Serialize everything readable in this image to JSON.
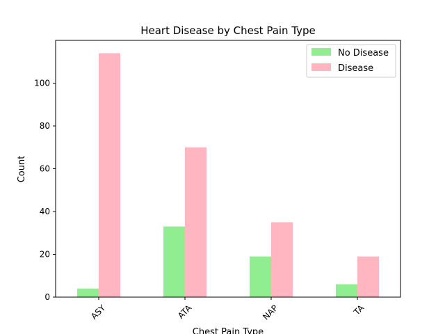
{
  "chart_data": {
    "type": "bar",
    "title": "Heart Disease by Chest Pain Type",
    "xlabel": "Chest Pain Type",
    "ylabel": "Count",
    "categories": [
      "ASY",
      "ATA",
      "NAP",
      "TA"
    ],
    "series": [
      {
        "name": "No Disease",
        "color": "#90EE90",
        "values": [
          4,
          33,
          19,
          6
        ]
      },
      {
        "name": "Disease",
        "color": "#FFB6C1",
        "values": [
          114,
          70,
          35,
          19
        ]
      }
    ],
    "ylim": [
      0,
      120
    ],
    "yticks": [
      0,
      20,
      40,
      60,
      80,
      100
    ],
    "grid": false,
    "legend": "top-right",
    "x_tick_rotation": "45"
  }
}
